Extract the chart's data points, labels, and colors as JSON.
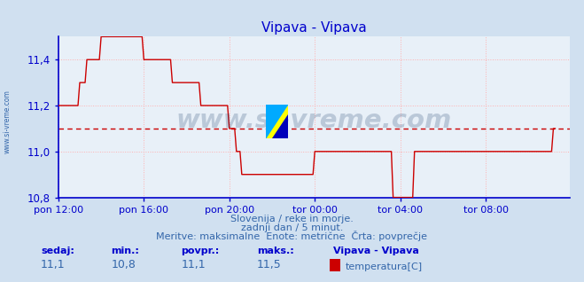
{
  "title": "Vipava - Vipava",
  "bg_color": "#d0e0f0",
  "plot_bg_color": "#e8f0f8",
  "line_color": "#cc0000",
  "avg_line_color": "#cc0000",
  "grid_color": "#ffb0b0",
  "axis_color": "#0000cc",
  "text_color": "#3366aa",
  "ylim": [
    10.8,
    11.5
  ],
  "yticks": [
    10.8,
    11.0,
    11.2,
    11.4
  ],
  "avg_value": 11.1,
  "subtitle1": "Slovenija / reke in morje.",
  "subtitle2": "zadnji dan / 5 minut.",
  "subtitle3": "Meritve: maksimalne  Enote: metrične  Črta: povprečje",
  "legend_title": "Vipava - Vipava",
  "legend_label": "temperatura[C]",
  "stat_labels": [
    "sedaj:",
    "min.:",
    "povpr.:",
    "maks.:"
  ],
  "stat_values": [
    "11,1",
    "10,8",
    "11,1",
    "11,5"
  ],
  "xtick_labels": [
    "pon 12:00",
    "pon 16:00",
    "pon 20:00",
    "tor 00:00",
    "tor 04:00",
    "tor 08:00"
  ],
  "xtick_positions": [
    0,
    48,
    96,
    144,
    192,
    240
  ],
  "total_points": 288,
  "watermark": "www.si-vreme.com",
  "watermark_color": "#1a3a6a",
  "left_label": "www.si-vreme.com",
  "temperature_data": [
    11.2,
    11.2,
    11.2,
    11.2,
    11.2,
    11.2,
    11.2,
    11.2,
    11.2,
    11.2,
    11.2,
    11.2,
    11.3,
    11.3,
    11.3,
    11.3,
    11.4,
    11.4,
    11.4,
    11.4,
    11.4,
    11.4,
    11.4,
    11.4,
    11.5,
    11.5,
    11.5,
    11.5,
    11.5,
    11.5,
    11.5,
    11.5,
    11.5,
    11.5,
    11.5,
    11.5,
    11.5,
    11.5,
    11.5,
    11.5,
    11.5,
    11.5,
    11.5,
    11.5,
    11.5,
    11.5,
    11.5,
    11.5,
    11.4,
    11.4,
    11.4,
    11.4,
    11.4,
    11.4,
    11.4,
    11.4,
    11.4,
    11.4,
    11.4,
    11.4,
    11.4,
    11.4,
    11.4,
    11.4,
    11.3,
    11.3,
    11.3,
    11.3,
    11.3,
    11.3,
    11.3,
    11.3,
    11.3,
    11.3,
    11.3,
    11.3,
    11.3,
    11.3,
    11.3,
    11.3,
    11.2,
    11.2,
    11.2,
    11.2,
    11.2,
    11.2,
    11.2,
    11.2,
    11.2,
    11.2,
    11.2,
    11.2,
    11.2,
    11.2,
    11.2,
    11.2,
    11.1,
    11.1,
    11.1,
    11.1,
    11.0,
    11.0,
    11.0,
    10.9,
    10.9,
    10.9,
    10.9,
    10.9,
    10.9,
    10.9,
    10.9,
    10.9,
    10.9,
    10.9,
    10.9,
    10.9,
    10.9,
    10.9,
    10.9,
    10.9,
    10.9,
    10.9,
    10.9,
    10.9,
    10.9,
    10.9,
    10.9,
    10.9,
    10.9,
    10.9,
    10.9,
    10.9,
    10.9,
    10.9,
    10.9,
    10.9,
    10.9,
    10.9,
    10.9,
    10.9,
    10.9,
    10.9,
    10.9,
    10.9,
    11.0,
    11.0,
    11.0,
    11.0,
    11.0,
    11.0,
    11.0,
    11.0,
    11.0,
    11.0,
    11.0,
    11.0,
    11.0,
    11.0,
    11.0,
    11.0,
    11.0,
    11.0,
    11.0,
    11.0,
    11.0,
    11.0,
    11.0,
    11.0,
    11.0,
    11.0,
    11.0,
    11.0,
    11.0,
    11.0,
    11.0,
    11.0,
    11.0,
    11.0,
    11.0,
    11.0,
    11.0,
    11.0,
    11.0,
    11.0,
    11.0,
    11.0,
    11.0,
    11.0,
    10.8,
    10.8,
    10.8,
    10.8,
    10.8,
    10.8,
    10.8,
    10.8,
    10.8,
    10.8,
    10.8,
    10.8,
    11.0,
    11.0,
    11.0,
    11.0,
    11.0,
    11.0,
    11.0,
    11.0,
    11.0,
    11.0,
    11.0,
    11.0,
    11.0,
    11.0,
    11.0,
    11.0,
    11.0,
    11.0,
    11.0,
    11.0,
    11.0,
    11.0,
    11.0,
    11.0,
    11.0,
    11.0,
    11.0,
    11.0,
    11.0,
    11.0,
    11.0,
    11.0,
    11.0,
    11.0,
    11.0,
    11.0,
    11.0,
    11.0,
    11.0,
    11.0,
    11.0,
    11.0,
    11.0,
    11.0,
    11.0,
    11.0,
    11.0,
    11.0,
    11.0,
    11.0,
    11.0,
    11.0,
    11.0,
    11.0,
    11.0,
    11.0,
    11.0,
    11.0,
    11.0,
    11.0,
    11.0,
    11.0,
    11.0,
    11.0,
    11.0,
    11.0,
    11.0,
    11.0,
    11.0,
    11.0,
    11.0,
    11.0,
    11.0,
    11.0,
    11.0,
    11.0,
    11.0,
    11.0,
    11.1,
    11.1
  ]
}
